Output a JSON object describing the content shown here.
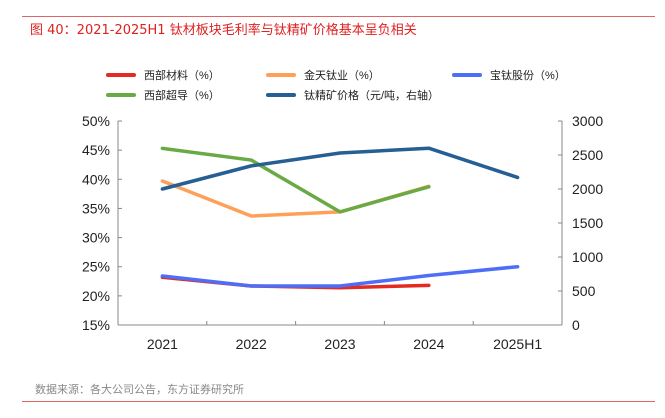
{
  "title": "图 40：2021-2025H1 钛材板块毛利率与钛精矿价格基本呈负相关",
  "source": "数据来源：各大公司公告，东方证券研究所",
  "chart_data": {
    "type": "line",
    "categories": [
      "2021",
      "2022",
      "2023",
      "2024",
      "2025H1"
    ],
    "y_left": {
      "ylim": [
        15,
        50
      ],
      "ticks": [
        "15%",
        "20%",
        "25%",
        "30%",
        "35%",
        "40%",
        "45%",
        "50%"
      ]
    },
    "y_right": {
      "ylim": [
        0,
        3000
      ],
      "ticks": [
        "0",
        "500",
        "1000",
        "1500",
        "2000",
        "2500",
        "3000"
      ]
    },
    "legend_position": "top",
    "series": [
      {
        "name": "西部材料（%）",
        "color": "#e32b22",
        "axis": "left",
        "values": [
          23.2,
          21.7,
          21.4,
          21.8,
          null
        ]
      },
      {
        "name": "金天钛业（%）",
        "color": "#ffa05a",
        "axis": "left",
        "values": [
          39.7,
          33.7,
          34.4,
          38.8,
          null
        ]
      },
      {
        "name": "宝钛股份（%）",
        "color": "#4f6ef7",
        "axis": "left",
        "values": [
          23.4,
          21.7,
          21.7,
          23.5,
          25.0
        ]
      },
      {
        "name": "西部超导（%）",
        "color": "#6aaa45",
        "axis": "left",
        "values": [
          45.3,
          43.3,
          34.4,
          38.7,
          null
        ]
      },
      {
        "name": "钛精矿价格（元/吨，右轴）",
        "color": "#255f93",
        "axis": "right",
        "values": [
          2000,
          2340,
          2530,
          2600,
          2170
        ]
      }
    ]
  }
}
